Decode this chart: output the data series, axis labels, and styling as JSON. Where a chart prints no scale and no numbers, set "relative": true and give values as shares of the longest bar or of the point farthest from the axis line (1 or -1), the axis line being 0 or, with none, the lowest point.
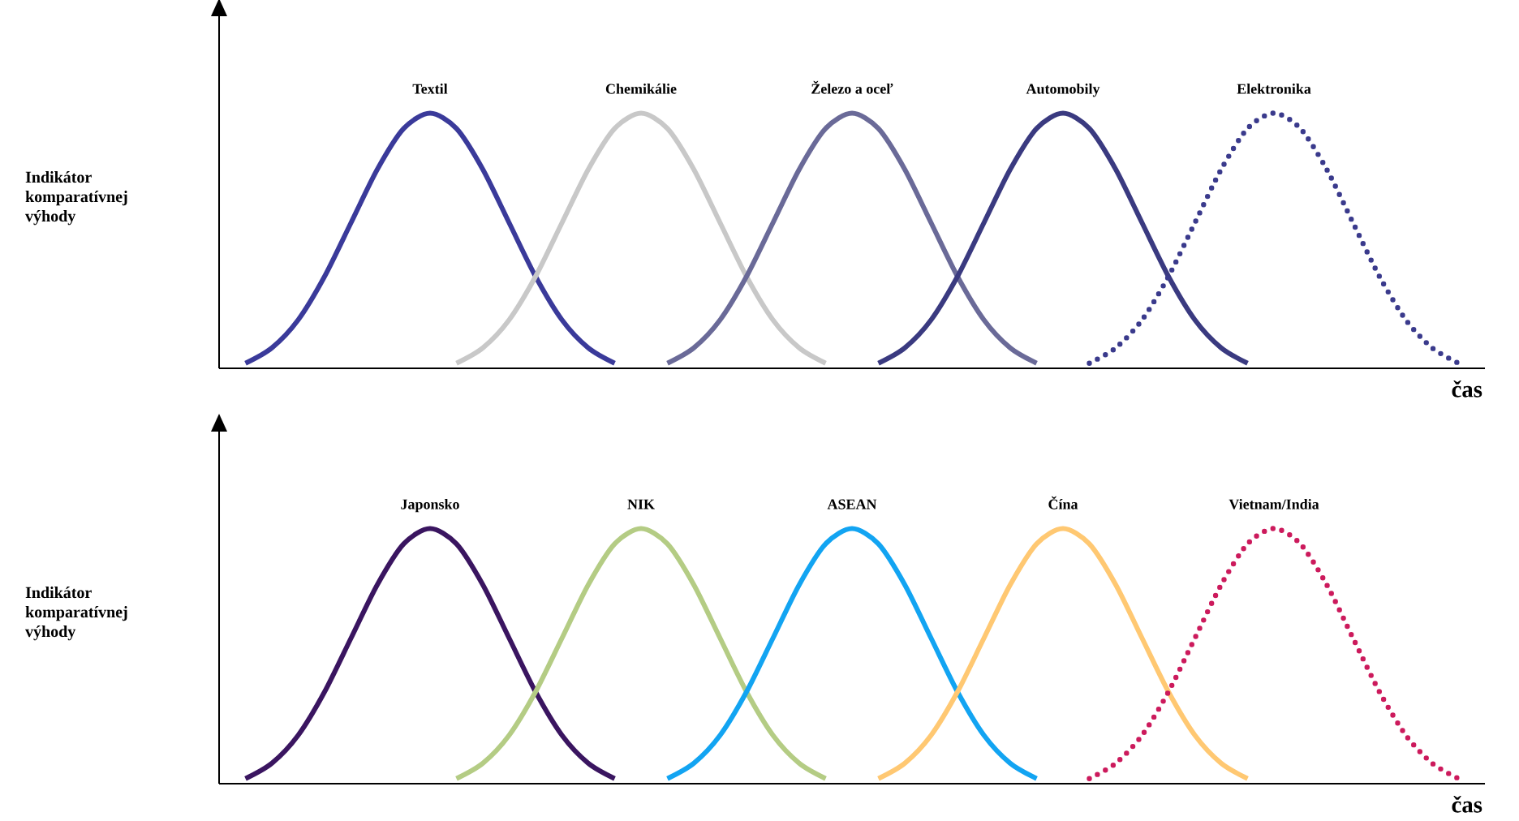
{
  "chart_data": [
    {
      "type": "line",
      "relative": true,
      "ylabel": "Indikátor komparatívnej výhody",
      "xlabel": "čas",
      "categories": [
        null,
        null,
        null,
        null,
        null,
        null,
        null,
        null,
        null,
        null,
        null,
        null,
        null,
        null,
        null,
        null,
        null,
        null,
        null,
        null,
        null,
        null,
        null,
        null,
        null,
        null,
        null,
        null,
        null,
        null,
        null,
        null,
        null,
        null,
        null,
        null,
        null,
        null,
        null,
        null,
        null,
        null,
        null,
        null,
        null,
        null,
        null,
        null,
        null
      ],
      "series": [
        {
          "name": "Textil",
          "color": "#3a3a9a",
          "line_style": "solid",
          "values": [
            null,
            0.02,
            0.08,
            0.19,
            0.36,
            0.57,
            0.78,
            0.94,
            1,
            0.94,
            0.78,
            0.57,
            0.36,
            0.19,
            0.08,
            0.02,
            null,
            null,
            null,
            null,
            null,
            null,
            null,
            null,
            null,
            null,
            null,
            null,
            null,
            null,
            null,
            null,
            null,
            null,
            null,
            null,
            null,
            null,
            null,
            null,
            null,
            null,
            null,
            null,
            null,
            null,
            null,
            null,
            null
          ]
        },
        {
          "name": "Chemikálie",
          "color": "#c8c8c8",
          "line_style": "solid",
          "values": [
            null,
            null,
            null,
            null,
            null,
            null,
            null,
            null,
            null,
            0.02,
            0.08,
            0.19,
            0.36,
            0.57,
            0.78,
            0.94,
            1,
            0.94,
            0.78,
            0.57,
            0.36,
            0.19,
            0.08,
            0.02,
            null,
            null,
            null,
            null,
            null,
            null,
            null,
            null,
            null,
            null,
            null,
            null,
            null,
            null,
            null,
            null,
            null,
            null,
            null,
            null,
            null,
            null,
            null,
            null,
            null
          ]
        },
        {
          "name": "Železo a oceľ",
          "color": "#6a6a98",
          "line_style": "solid",
          "values": [
            null,
            null,
            null,
            null,
            null,
            null,
            null,
            null,
            null,
            null,
            null,
            null,
            null,
            null,
            null,
            null,
            null,
            0.02,
            0.08,
            0.19,
            0.36,
            0.57,
            0.78,
            0.94,
            1,
            0.94,
            0.78,
            0.57,
            0.36,
            0.19,
            0.08,
            0.02,
            null,
            null,
            null,
            null,
            null,
            null,
            null,
            null,
            null,
            null,
            null,
            null,
            null,
            null,
            null,
            null,
            null
          ]
        },
        {
          "name": "Automobily",
          "color": "#3a3a80",
          "line_style": "solid",
          "values": [
            null,
            null,
            null,
            null,
            null,
            null,
            null,
            null,
            null,
            null,
            null,
            null,
            null,
            null,
            null,
            null,
            null,
            null,
            null,
            null,
            null,
            null,
            null,
            null,
            null,
            0.02,
            0.08,
            0.19,
            0.36,
            0.57,
            0.78,
            0.94,
            1,
            0.94,
            0.78,
            0.57,
            0.36,
            0.19,
            0.08,
            0.02,
            null,
            null,
            null,
            null,
            null,
            null,
            null,
            null,
            null
          ]
        },
        {
          "name": "Elektronika",
          "color": "#3a3a8c",
          "line_style": "dotted",
          "values": [
            null,
            null,
            null,
            null,
            null,
            null,
            null,
            null,
            null,
            null,
            null,
            null,
            null,
            null,
            null,
            null,
            null,
            null,
            null,
            null,
            null,
            null,
            null,
            null,
            null,
            null,
            null,
            null,
            null,
            null,
            null,
            null,
            null,
            0.02,
            0.08,
            0.19,
            0.36,
            0.57,
            0.78,
            0.94,
            1,
            0.94,
            0.78,
            0.57,
            0.36,
            0.19,
            0.08,
            0.02,
            null
          ]
        }
      ]
    },
    {
      "type": "line",
      "relative": true,
      "ylabel": "Indikátor komparatívnej výhody",
      "xlabel": "čas",
      "categories": [
        null,
        null,
        null,
        null,
        null,
        null,
        null,
        null,
        null,
        null,
        null,
        null,
        null,
        null,
        null,
        null,
        null,
        null,
        null,
        null,
        null,
        null,
        null,
        null,
        null,
        null,
        null,
        null,
        null,
        null,
        null,
        null,
        null,
        null,
        null,
        null,
        null,
        null,
        null,
        null,
        null,
        null,
        null,
        null,
        null,
        null,
        null,
        null,
        null
      ],
      "series": [
        {
          "name": "Japonsko",
          "color": "#3a1560",
          "line_style": "solid",
          "values": [
            null,
            0.02,
            0.08,
            0.19,
            0.36,
            0.57,
            0.78,
            0.94,
            1,
            0.94,
            0.78,
            0.57,
            0.36,
            0.19,
            0.08,
            0.02,
            null,
            null,
            null,
            null,
            null,
            null,
            null,
            null,
            null,
            null,
            null,
            null,
            null,
            null,
            null,
            null,
            null,
            null,
            null,
            null,
            null,
            null,
            null,
            null,
            null,
            null,
            null,
            null,
            null,
            null,
            null,
            null,
            null
          ]
        },
        {
          "name": "NIK",
          "color": "#b4cc84",
          "line_style": "solid",
          "values": [
            null,
            null,
            null,
            null,
            null,
            null,
            null,
            null,
            null,
            0.02,
            0.08,
            0.19,
            0.36,
            0.57,
            0.78,
            0.94,
            1,
            0.94,
            0.78,
            0.57,
            0.36,
            0.19,
            0.08,
            0.02,
            null,
            null,
            null,
            null,
            null,
            null,
            null,
            null,
            null,
            null,
            null,
            null,
            null,
            null,
            null,
            null,
            null,
            null,
            null,
            null,
            null,
            null,
            null,
            null,
            null
          ]
        },
        {
          "name": "ASEAN",
          "color": "#12a4f2",
          "line_style": "solid",
          "values": [
            null,
            null,
            null,
            null,
            null,
            null,
            null,
            null,
            null,
            null,
            null,
            null,
            null,
            null,
            null,
            null,
            null,
            0.02,
            0.08,
            0.19,
            0.36,
            0.57,
            0.78,
            0.94,
            1,
            0.94,
            0.78,
            0.57,
            0.36,
            0.19,
            0.08,
            0.02,
            null,
            null,
            null,
            null,
            null,
            null,
            null,
            null,
            null,
            null,
            null,
            null,
            null,
            null,
            null,
            null,
            null
          ]
        },
        {
          "name": "Čína",
          "color": "#ffc872",
          "line_style": "solid",
          "values": [
            null,
            null,
            null,
            null,
            null,
            null,
            null,
            null,
            null,
            null,
            null,
            null,
            null,
            null,
            null,
            null,
            null,
            null,
            null,
            null,
            null,
            null,
            null,
            null,
            null,
            0.02,
            0.08,
            0.19,
            0.36,
            0.57,
            0.78,
            0.94,
            1,
            0.94,
            0.78,
            0.57,
            0.36,
            0.19,
            0.08,
            0.02,
            null,
            null,
            null,
            null,
            null,
            null,
            null,
            null,
            null
          ]
        },
        {
          "name": "Vietnam/India",
          "color": "#cc1a5c",
          "line_style": "dotted",
          "values": [
            null,
            null,
            null,
            null,
            null,
            null,
            null,
            null,
            null,
            null,
            null,
            null,
            null,
            null,
            null,
            null,
            null,
            null,
            null,
            null,
            null,
            null,
            null,
            null,
            null,
            null,
            null,
            null,
            null,
            null,
            null,
            null,
            null,
            0.02,
            0.08,
            0.19,
            0.36,
            0.57,
            0.78,
            0.94,
            1,
            0.94,
            0.78,
            0.57,
            0.36,
            0.19,
            0.08,
            0.02,
            null
          ]
        }
      ]
    }
  ]
}
